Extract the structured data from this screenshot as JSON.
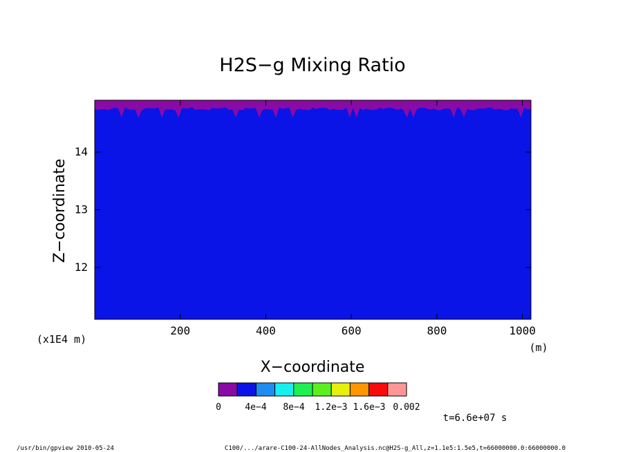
{
  "chart_data": {
    "type": "heatmap",
    "title": "H2S−g Mixing Ratio",
    "xlabel": "X−coordinate",
    "ylabel": "Z−coordinate",
    "x_unit": "(m)",
    "y_unit": "(x1E4 m)",
    "xlim": [
      0,
      1020
    ],
    "ylim": [
      11.1,
      14.9
    ],
    "x_ticks": [
      200,
      400,
      600,
      800,
      1000
    ],
    "y_ticks": [
      12,
      13,
      14
    ],
    "field": {
      "background_bin": 1,
      "top_band": {
        "bin": 0,
        "z_top": 14.9,
        "z_bottom_typical": 14.75,
        "z_bottom_deepest": 14.6
      }
    },
    "colorbar": {
      "colors": [
        "#8a0aa6",
        "#0a14e6",
        "#1e8cf0",
        "#14f0f0",
        "#1ef050",
        "#5af01e",
        "#e6f00a",
        "#ff9600",
        "#ff0a0a",
        "#ff9696"
      ],
      "labels": [
        "0",
        "4e−4",
        "8e−4",
        "1.2e−3",
        "1.6e−3",
        "0.002"
      ],
      "label_texts": [
        "0",
        "4e−4",
        "8e−4",
        "1.2e−3",
        "1.6e−3",
        "0.002"
      ],
      "range": [
        0,
        0.002
      ]
    },
    "time_label": "t=6.6e+07 s",
    "footer_left": "/usr/bin/gpview   2010-05-24",
    "footer_right": "C100/.../arare-C100-24-AllNodes_Analysis.nc@H2S-g_All,z=1.1e5:1.5e5,t=66000000.0:66000000.0"
  }
}
